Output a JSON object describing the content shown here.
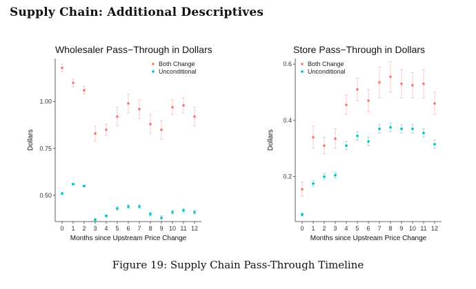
{
  "page": {
    "heading": "Supply Chain: Additional Descriptives",
    "caption": "Figure 19: Supply Chain Pass-Through Timeline"
  },
  "colors": {
    "both": "#F8766D",
    "uncond": "#00BFC4",
    "axis": "#333333"
  },
  "chart_data": [
    {
      "type": "scatter",
      "title": "Wholesaler Pass−Through in Dollars",
      "xlabel": "Months since Upstream Price Change",
      "ylabel": "Dollars",
      "x": [
        0,
        1,
        2,
        3,
        4,
        5,
        6,
        7,
        8,
        9,
        10,
        11,
        12
      ],
      "ylim": [
        0.36,
        1.23
      ],
      "yticks": [
        0.5,
        0.75,
        1.0
      ],
      "ytick_labels": [
        "0.50",
        "0.75",
        "1.00"
      ],
      "legend": [
        "Both Change",
        "Unconditional"
      ],
      "series": [
        {
          "name": "Both Change",
          "values": [
            1.18,
            1.1,
            1.06,
            0.83,
            0.85,
            0.92,
            0.99,
            0.96,
            0.88,
            0.85,
            0.97,
            0.98,
            0.92
          ],
          "lower": [
            1.16,
            1.08,
            1.04,
            0.79,
            0.82,
            0.87,
            0.94,
            0.91,
            0.83,
            0.8,
            0.93,
            0.94,
            0.87
          ],
          "upper": [
            1.2,
            1.12,
            1.08,
            0.87,
            0.88,
            0.97,
            1.04,
            1.01,
            0.93,
            0.9,
            1.01,
            1.02,
            0.97
          ]
        },
        {
          "name": "Unconditional",
          "values": [
            0.51,
            0.56,
            0.55,
            0.37,
            0.39,
            0.43,
            0.44,
            0.44,
            0.4,
            0.38,
            0.41,
            0.42,
            0.41
          ],
          "lower": [
            0.505,
            0.555,
            0.545,
            0.365,
            0.385,
            0.42,
            0.43,
            0.43,
            0.39,
            0.37,
            0.4,
            0.41,
            0.4
          ],
          "upper": [
            0.515,
            0.565,
            0.555,
            0.375,
            0.395,
            0.44,
            0.45,
            0.45,
            0.41,
            0.39,
            0.42,
            0.43,
            0.42
          ]
        }
      ]
    },
    {
      "type": "scatter",
      "title": "Store Pass−Through in Dollars",
      "xlabel": "Months since Upstream Price Change",
      "ylabel": "Dollars",
      "x": [
        0,
        1,
        2,
        3,
        4,
        5,
        6,
        7,
        8,
        9,
        10,
        11,
        12
      ],
      "ylim": [
        0.04,
        0.62
      ],
      "yticks": [
        0.2,
        0.4,
        0.6
      ],
      "ytick_labels": [
        "0.2",
        "0.4",
        "0.6"
      ],
      "legend": [
        "Both Change",
        "Unconditional"
      ],
      "series": [
        {
          "name": "Both Change",
          "values": [
            0.155,
            0.34,
            0.31,
            0.335,
            0.455,
            0.51,
            0.47,
            0.535,
            0.555,
            0.53,
            0.525,
            0.53,
            0.46
          ],
          "lower": [
            0.13,
            0.3,
            0.28,
            0.3,
            0.42,
            0.47,
            0.43,
            0.48,
            0.5,
            0.48,
            0.48,
            0.48,
            0.42
          ],
          "upper": [
            0.18,
            0.38,
            0.34,
            0.37,
            0.49,
            0.55,
            0.51,
            0.59,
            0.61,
            0.58,
            0.57,
            0.58,
            0.5
          ]
        },
        {
          "name": "Unconditional",
          "values": [
            0.065,
            0.175,
            0.2,
            0.205,
            0.31,
            0.345,
            0.325,
            0.37,
            0.375,
            0.37,
            0.37,
            0.355,
            0.315
          ],
          "lower": [
            0.06,
            0.165,
            0.19,
            0.195,
            0.295,
            0.33,
            0.31,
            0.355,
            0.36,
            0.355,
            0.355,
            0.34,
            0.3
          ],
          "upper": [
            0.07,
            0.185,
            0.21,
            0.215,
            0.325,
            0.36,
            0.34,
            0.385,
            0.39,
            0.385,
            0.385,
            0.37,
            0.33
          ]
        }
      ]
    }
  ]
}
